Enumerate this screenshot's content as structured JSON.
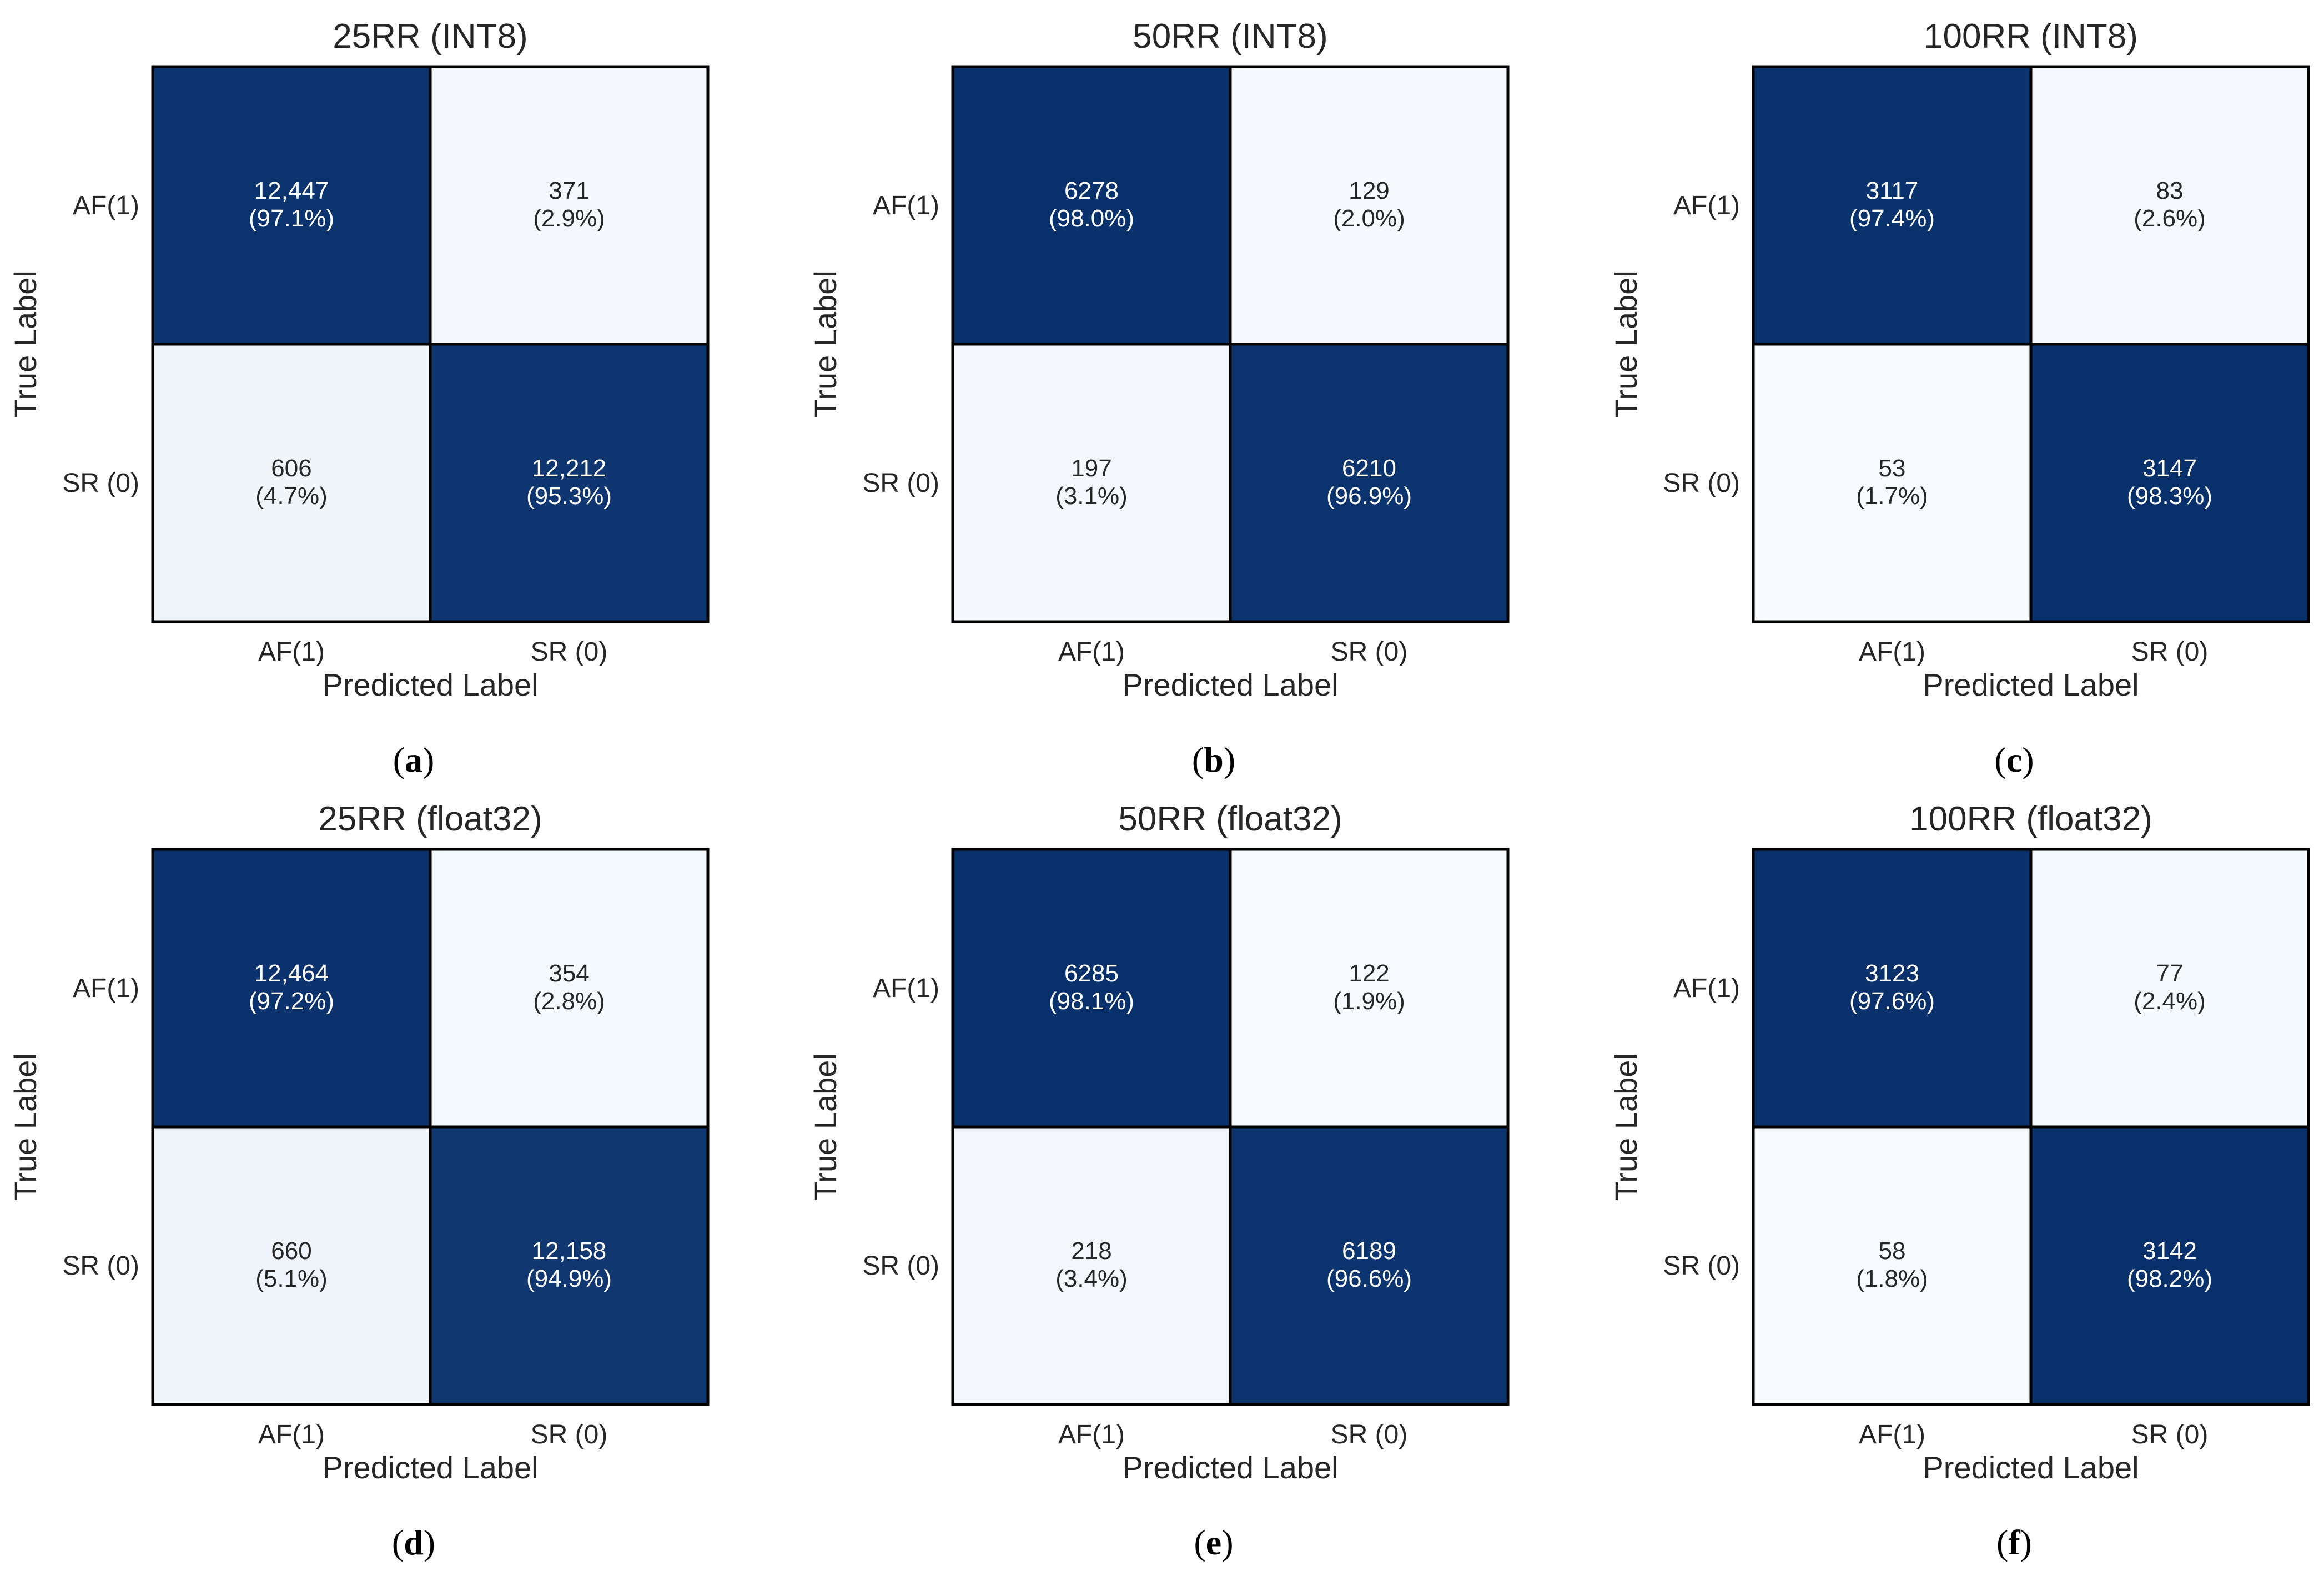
{
  "chart_data": [
    {
      "type": "heatmap",
      "title": "25RR (INT8)",
      "caption": "a",
      "xlabel": "Predicted Label",
      "ylabel": "True Label",
      "x_categories": [
        "AF(1)",
        "SR (0)"
      ],
      "y_categories": [
        "AF(1)",
        "SR (0)"
      ],
      "cells": [
        [
          {
            "count": "12,447",
            "percent": "(97.1%)",
            "value": 0.971
          },
          {
            "count": "371",
            "percent": "(2.9%)",
            "value": 0.029
          }
        ],
        [
          {
            "count": "606",
            "percent": "(4.7%)",
            "value": 0.047
          },
          {
            "count": "12,212",
            "percent": "(95.3%)",
            "value": 0.953
          }
        ]
      ]
    },
    {
      "type": "heatmap",
      "title": "50RR (INT8)",
      "caption": "b",
      "xlabel": "Predicted Label",
      "ylabel": "True Label",
      "x_categories": [
        "AF(1)",
        "SR (0)"
      ],
      "y_categories": [
        "AF(1)",
        "SR (0)"
      ],
      "cells": [
        [
          {
            "count": "6278",
            "percent": "(98.0%)",
            "value": 0.98
          },
          {
            "count": "129",
            "percent": "(2.0%)",
            "value": 0.02
          }
        ],
        [
          {
            "count": "197",
            "percent": "(3.1%)",
            "value": 0.031
          },
          {
            "count": "6210",
            "percent": "(96.9%)",
            "value": 0.969
          }
        ]
      ]
    },
    {
      "type": "heatmap",
      "title": "100RR (INT8)",
      "caption": "c",
      "xlabel": "Predicted Label",
      "ylabel": "True Label",
      "x_categories": [
        "AF(1)",
        "SR (0)"
      ],
      "y_categories": [
        "AF(1)",
        "SR (0)"
      ],
      "cells": [
        [
          {
            "count": "3117",
            "percent": "(97.4%)",
            "value": 0.974
          },
          {
            "count": "83",
            "percent": "(2.6%)",
            "value": 0.026
          }
        ],
        [
          {
            "count": "53",
            "percent": "(1.7%)",
            "value": 0.017
          },
          {
            "count": "3147",
            "percent": "(98.3%)",
            "value": 0.983
          }
        ]
      ]
    },
    {
      "type": "heatmap",
      "title": "25RR (float32)",
      "caption": "d",
      "xlabel": "Predicted Label",
      "ylabel": "True Label",
      "x_categories": [
        "AF(1)",
        "SR (0)"
      ],
      "y_categories": [
        "AF(1)",
        "SR (0)"
      ],
      "cells": [
        [
          {
            "count": "12,464",
            "percent": "(97.2%)",
            "value": 0.972
          },
          {
            "count": "354",
            "percent": "(2.8%)",
            "value": 0.028
          }
        ],
        [
          {
            "count": "660",
            "percent": "(5.1%)",
            "value": 0.051
          },
          {
            "count": "12,158",
            "percent": "(94.9%)",
            "value": 0.949
          }
        ]
      ]
    },
    {
      "type": "heatmap",
      "title": "50RR (float32)",
      "caption": "e",
      "xlabel": "Predicted Label",
      "ylabel": "True Label",
      "x_categories": [
        "AF(1)",
        "SR (0)"
      ],
      "y_categories": [
        "AF(1)",
        "SR (0)"
      ],
      "cells": [
        [
          {
            "count": "6285",
            "percent": "(98.1%)",
            "value": 0.981
          },
          {
            "count": "122",
            "percent": "(1.9%)",
            "value": 0.019
          }
        ],
        [
          {
            "count": "218",
            "percent": "(3.4%)",
            "value": 0.034
          },
          {
            "count": "6189",
            "percent": "(96.6%)",
            "value": 0.966
          }
        ]
      ]
    },
    {
      "type": "heatmap",
      "title": "100RR (float32)",
      "caption": "f",
      "xlabel": "Predicted Label",
      "ylabel": "True Label",
      "x_categories": [
        "AF(1)",
        "SR (0)"
      ],
      "y_categories": [
        "AF(1)",
        "SR (0)"
      ],
      "cells": [
        [
          {
            "count": "3123",
            "percent": "(97.6%)",
            "value": 0.976
          },
          {
            "count": "77",
            "percent": "(2.4%)",
            "value": 0.024
          }
        ],
        [
          {
            "count": "58",
            "percent": "(1.8%)",
            "value": 0.018
          },
          {
            "count": "3142",
            "percent": "(98.2%)",
            "value": 0.982
          }
        ]
      ]
    }
  ],
  "colors": {
    "high": "#08306b",
    "low": "#f7fbff",
    "text_on_dark": "#ffffff",
    "text_on_light": "#262626",
    "cell_border": "#000000"
  }
}
